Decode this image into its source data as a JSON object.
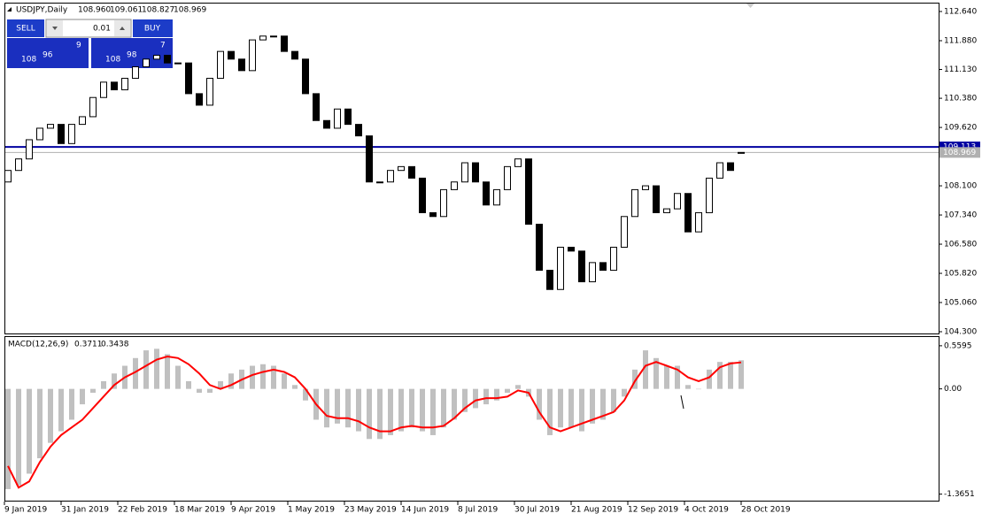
{
  "header": {
    "symbol": "USDJPY,Daily",
    "ohlc": [
      "108.960",
      "109.061",
      "108.827",
      "108.969"
    ]
  },
  "trade_panel": {
    "sell": "SELL",
    "buy": "BUY",
    "lot": "0.01",
    "sell_price": {
      "big": "108",
      "main": "96",
      "sup": "9"
    },
    "buy_price": {
      "big": "108",
      "main": "98",
      "sup": "7"
    }
  },
  "chart_data": [
    {
      "type": "candlestick",
      "open": [
        108.2,
        108.5,
        108.8,
        109.3,
        109.6,
        109.7,
        109.2,
        109.7,
        109.9,
        110.4,
        110.8,
        110.6,
        110.9,
        111.2,
        111.4,
        111.5,
        111.3,
        111.3,
        110.5,
        110.2,
        110.9,
        111.6,
        111.4,
        111.1,
        111.9,
        112.0,
        112.0,
        111.6,
        111.4,
        110.5,
        109.8,
        109.6,
        110.1,
        109.7,
        109.4,
        108.2,
        108.2,
        108.5,
        108.6,
        108.3,
        107.4,
        107.3,
        108.0,
        108.2,
        108.7,
        108.2,
        107.6,
        108.0,
        108.6,
        108.8,
        107.1,
        105.9,
        105.4,
        106.5,
        106.4,
        105.6,
        106.1,
        105.9,
        106.5,
        107.3,
        108.0,
        108.1,
        107.4,
        107.5,
        107.9,
        106.9,
        107.4,
        108.3,
        108.7,
        108.96
      ],
      "close": [
        108.5,
        108.8,
        109.3,
        109.6,
        109.7,
        109.2,
        109.7,
        109.9,
        110.4,
        110.8,
        110.6,
        110.9,
        111.2,
        111.4,
        111.5,
        111.3,
        111.3,
        110.5,
        110.2,
        110.9,
        111.6,
        111.4,
        111.1,
        111.9,
        112.0,
        112.0,
        111.6,
        111.4,
        110.5,
        109.8,
        109.6,
        110.1,
        109.7,
        109.4,
        108.2,
        108.2,
        108.5,
        108.6,
        108.3,
        107.4,
        107.3,
        108.0,
        108.2,
        108.7,
        108.2,
        107.6,
        108.0,
        108.6,
        108.8,
        107.1,
        105.9,
        105.4,
        106.5,
        106.4,
        105.6,
        106.1,
        105.9,
        106.5,
        107.3,
        108.0,
        108.1,
        107.4,
        107.5,
        107.9,
        106.9,
        107.4,
        108.3,
        108.7,
        108.5,
        108.969
      ],
      "ylim": [
        104.3,
        112.64
      ],
      "yticks": [
        {
          "value": 112.64,
          "label": "112.640"
        },
        {
          "value": 111.88,
          "label": "111.880"
        },
        {
          "value": 111.13,
          "label": "111.130"
        },
        {
          "value": 110.38,
          "label": "110.380"
        },
        {
          "value": 109.62,
          "label": "109.620"
        },
        {
          "value": 108.1,
          "label": "108.100"
        },
        {
          "value": 107.34,
          "label": "107.340"
        },
        {
          "value": 106.58,
          "label": "106.580"
        },
        {
          "value": 105.82,
          "label": "105.820"
        },
        {
          "value": 105.06,
          "label": "105.060"
        },
        {
          "value": 104.3,
          "label": "104.300"
        }
      ],
      "lines": [
        {
          "value": 109.113,
          "color": "#0000a0"
        },
        {
          "value": 108.969,
          "color": "#b0b0b0"
        }
      ],
      "x_labels": [
        "9 Jan 2019",
        "31 Jan 2019",
        "22 Feb 2019",
        "18 Mar 2019",
        "9 Apr 2019",
        "1 May 2019",
        "23 May 2019",
        "14 Jun 2019",
        "8 Jul 2019",
        "30 Jul 2019",
        "21 Aug 2019",
        "12 Sep 2019",
        "4 Oct 2019",
        "28 Oct 2019"
      ]
    },
    {
      "type": "macd",
      "title": "MACD(12,26,9)",
      "ylim": [
        -1.45,
        0.65
      ],
      "yticks": [
        0.5595,
        {
          "value": 0,
          "label": "0.00"
        },
        -1.3651
      ],
      "series": [
        {
          "name": "MACD",
          "color": "#c0c0c0",
          "values": [
            -1.3,
            -1.25,
            -1.1,
            -0.9,
            -0.7,
            -0.55,
            -0.4,
            -0.2,
            -0.05,
            0.1,
            0.2,
            0.3,
            0.4,
            0.5,
            0.52,
            0.45,
            0.3,
            0.1,
            -0.05,
            -0.05,
            0.1,
            0.2,
            0.25,
            0.3,
            0.32,
            0.3,
            0.2,
            0.05,
            -0.15,
            -0.4,
            -0.5,
            -0.45,
            -0.5,
            -0.55,
            -0.65,
            -0.65,
            -0.6,
            -0.55,
            -0.5,
            -0.55,
            -0.6,
            -0.5,
            -0.4,
            -0.3,
            -0.25,
            -0.2,
            -0.15,
            -0.05,
            0.05,
            -0.1,
            -0.4,
            -0.6,
            -0.5,
            -0.5,
            -0.55,
            -0.45,
            -0.4,
            -0.3,
            -0.1,
            0.25,
            0.5,
            0.4,
            0.3,
            0.3,
            0.05,
            0.0,
            0.25,
            0.35,
            0.35,
            0.3711
          ]
        },
        {
          "name": "Signal",
          "color": "#ff0000",
          "values": [
            -1.0,
            -1.28,
            -1.2,
            -0.95,
            -0.75,
            -0.6,
            -0.5,
            -0.4,
            -0.25,
            -0.1,
            0.05,
            0.15,
            0.22,
            0.3,
            0.38,
            0.42,
            0.4,
            0.32,
            0.2,
            0.05,
            0.0,
            0.05,
            0.12,
            0.18,
            0.22,
            0.25,
            0.22,
            0.15,
            0.0,
            -0.2,
            -0.35,
            -0.38,
            -0.38,
            -0.42,
            -0.5,
            -0.55,
            -0.55,
            -0.5,
            -0.48,
            -0.5,
            -0.5,
            -0.48,
            -0.38,
            -0.25,
            -0.15,
            -0.12,
            -0.12,
            -0.1,
            -0.02,
            -0.05,
            -0.3,
            -0.5,
            -0.55,
            -0.5,
            -0.45,
            -0.4,
            -0.35,
            -0.3,
            -0.15,
            0.1,
            0.3,
            0.35,
            0.3,
            0.25,
            0.15,
            0.1,
            0.15,
            0.28,
            0.33,
            0.3438
          ]
        }
      ]
    }
  ]
}
